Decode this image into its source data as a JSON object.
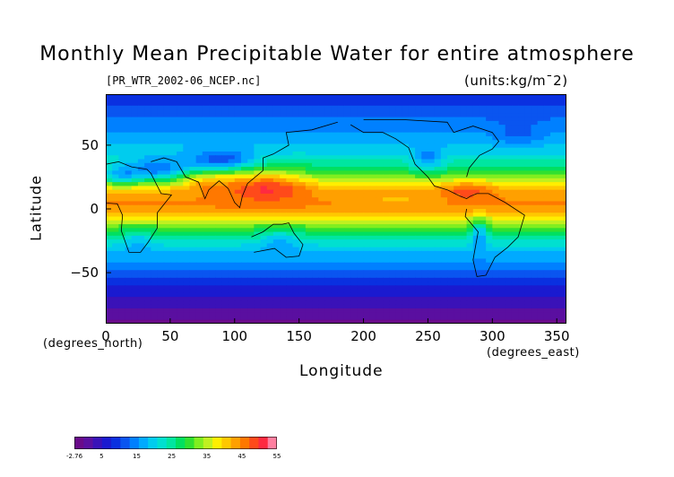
{
  "title": "Monthly Mean Precipitable Water for entire atmosphere",
  "filename": "[PR_WTR_2002-06_NCEP.nc]",
  "units": "(units:kg/m¯2)",
  "xlabel": "Longitude",
  "ylabel": "Latitude",
  "x_axis_sublabel": "(degrees_east)",
  "y_axis_sublabel": "(degrees_north)",
  "x_ticks": [
    "0",
    "50",
    "100",
    "150",
    "200",
    "250",
    "300",
    "350"
  ],
  "y_ticks": [
    "50",
    "0",
    "−50"
  ],
  "colorbar": {
    "labels": [
      "-2.76",
      "5",
      "15",
      "25",
      "35",
      "45",
      "55"
    ],
    "colors": [
      "#6a0a8a",
      "#5a0fa0",
      "#3a12b8",
      "#1a1ad0",
      "#0a30e0",
      "#0a55f0",
      "#0080ff",
      "#00aaff",
      "#00ccee",
      "#00e0d0",
      "#00e6a0",
      "#00e060",
      "#30e030",
      "#80ee20",
      "#c0f020",
      "#ffee00",
      "#ffc800",
      "#ffa000",
      "#ff7800",
      "#ff4a1a",
      "#ff2a40",
      "#ff7fa0"
    ]
  },
  "chart_data": {
    "type": "heatmap",
    "title": "Monthly Mean Precipitable Water for entire atmosphere",
    "subtitle": "[PR_WTR_2002-06_NCEP.nc]",
    "units": "(units:kg/m¯2)",
    "xlabel": "Longitude",
    "ylabel": "Latitude",
    "xlim": [
      0,
      357.5
    ],
    "ylim": [
      -90,
      90
    ],
    "color_range": [
      -2.76,
      55
    ],
    "zonal_profile": {
      "lat": [
        90,
        75,
        60,
        45,
        30,
        15,
        5,
        0,
        -5,
        -15,
        -30,
        -45,
        -60,
        -75,
        -90
      ],
      "value": [
        8,
        12,
        16,
        20,
        28,
        42,
        45,
        44,
        40,
        30,
        20,
        14,
        8,
        3,
        -1
      ]
    }
  }
}
